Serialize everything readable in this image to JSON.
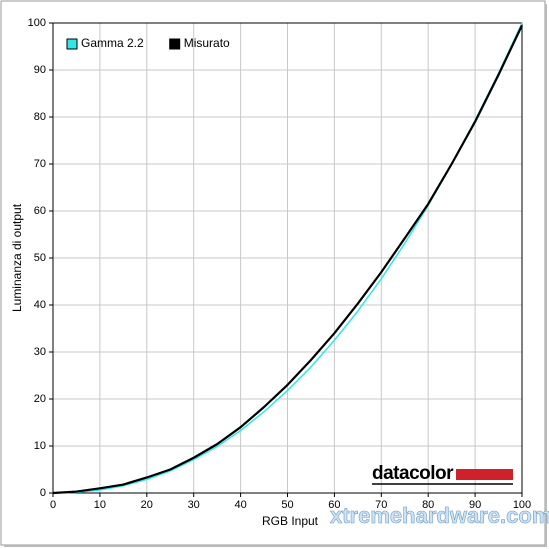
{
  "chart_data": {
    "type": "line",
    "xlabel": "RGB Input",
    "ylabel": "Luminanza di output",
    "x": [
      0,
      5,
      10,
      15,
      20,
      25,
      30,
      35,
      40,
      45,
      50,
      55,
      60,
      65,
      70,
      75,
      80,
      85,
      90,
      95,
      100
    ],
    "series": [
      {
        "name": "Gamma 2.2",
        "color": "#33e6e6",
        "values": [
          0,
          0.14,
          0.63,
          1.54,
          2.9,
          4.7,
          7.1,
          9.9,
          13.3,
          17.3,
          21.8,
          26.8,
          32.5,
          38.7,
          45.6,
          53.1,
          61.2,
          69.9,
          79.3,
          89.3,
          100
        ]
      },
      {
        "name": "Misurato",
        "color": "#000000",
        "values": [
          0,
          0.3,
          1.0,
          1.8,
          3.3,
          5.0,
          7.5,
          10.4,
          14,
          18.3,
          23,
          28.3,
          34,
          40.3,
          47,
          54.2,
          61.5,
          70,
          79,
          89,
          99.5
        ]
      }
    ],
    "xlim": [
      0,
      100
    ],
    "ylim": [
      0,
      100
    ],
    "xticks": [
      0,
      10,
      20,
      30,
      40,
      50,
      60,
      70,
      80,
      90,
      100
    ],
    "yticks": [
      0,
      10,
      20,
      30,
      40,
      50,
      60,
      70,
      80,
      90,
      100
    ],
    "grid": true,
    "legend": "upper left"
  },
  "watermarks": [
    "datacolor",
    "xtremehardware.com"
  ]
}
